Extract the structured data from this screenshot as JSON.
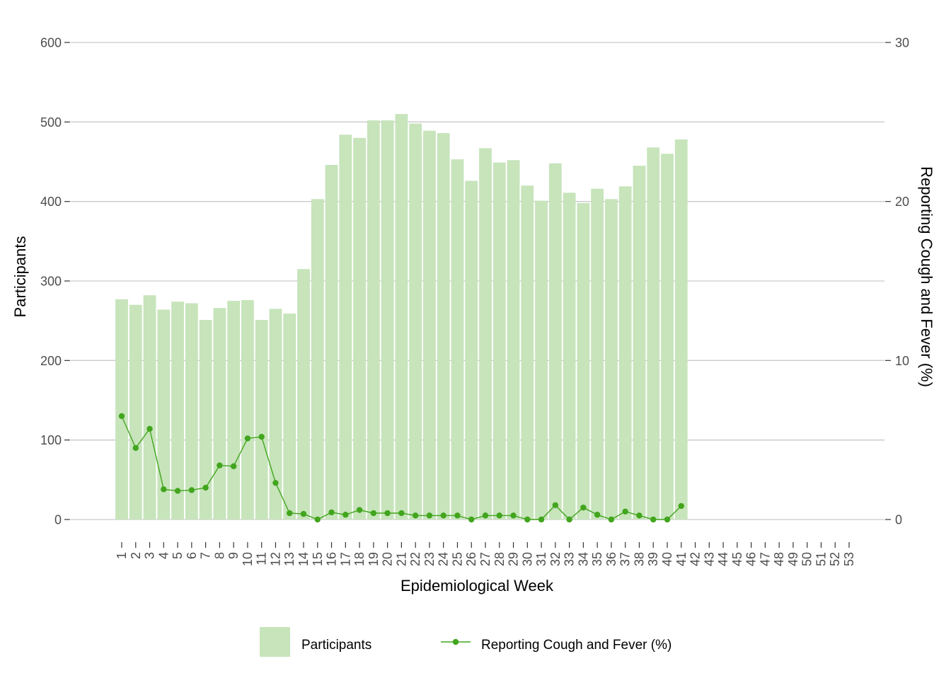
{
  "chart_data": {
    "type": "bar",
    "title": "",
    "xlabel": "Epidemiological Week",
    "ylabel": "Participants",
    "y2label": "Reporting Cough and Fever (%)",
    "ylim": [
      0,
      600
    ],
    "y2lim": [
      0,
      30
    ],
    "y_ticks": [
      "0",
      "100",
      "200",
      "300",
      "400",
      "500",
      "600"
    ],
    "y2_ticks": [
      "0",
      "10",
      "20",
      "30"
    ],
    "grid": "horizontal",
    "legend_position": "bottom",
    "categories": [
      "1",
      "2",
      "3",
      "4",
      "5",
      "6",
      "7",
      "8",
      "9",
      "10",
      "11",
      "12",
      "13",
      "14",
      "15",
      "16",
      "17",
      "18",
      "19",
      "20",
      "21",
      "22",
      "23",
      "24",
      "25",
      "26",
      "27",
      "28",
      "29",
      "30",
      "31",
      "32",
      "33",
      "34",
      "35",
      "36",
      "37",
      "38",
      "39",
      "40",
      "41",
      "42",
      "43",
      "44",
      "45",
      "46",
      "47",
      "48",
      "49",
      "50",
      "51",
      "52",
      "53"
    ],
    "visible_tick_labels": [
      "1",
      "2",
      "3",
      "4",
      "5",
      "6",
      "7",
      "8",
      "9",
      "10",
      "11",
      "12",
      "13",
      "14",
      "15",
      "16",
      "17",
      "18",
      "19",
      "20",
      "21",
      "22",
      "23",
      "24",
      "25",
      "26",
      "27",
      "28",
      "29",
      "30",
      "31",
      "32",
      "33",
      "34",
      "35",
      "36",
      "37",
      "38",
      "39",
      "40",
      "41",
      "42",
      "43",
      "44",
      "45",
      "46",
      "47",
      "48",
      "49",
      "50",
      "51",
      "52",
      "53"
    ],
    "series": [
      {
        "name": "Participants",
        "kind": "bar",
        "axis": "left",
        "color": "#c7e4bb",
        "values": [
          277,
          270,
          282,
          264,
          274,
          272,
          251,
          266,
          275,
          276,
          251,
          265,
          259,
          315,
          403,
          446,
          484,
          480,
          502,
          502,
          510,
          498,
          489,
          486,
          453,
          426,
          467,
          449,
          452,
          420,
          401,
          448,
          411,
          398,
          416,
          403,
          419,
          445,
          468,
          460,
          478,
          null,
          null,
          null,
          null,
          null,
          null,
          null,
          null,
          null,
          null,
          null,
          null
        ]
      },
      {
        "name": "Reporting Cough and Fever (%)",
        "kind": "line",
        "axis": "right",
        "color": "#41a51d",
        "values": [
          6.5,
          4.5,
          5.7,
          1.9,
          1.8,
          1.85,
          2.0,
          3.4,
          3.35,
          5.1,
          5.2,
          2.3,
          0.4,
          0.35,
          0.0,
          0.45,
          0.3,
          0.6,
          0.4,
          0.4,
          0.4,
          0.25,
          0.25,
          0.25,
          0.25,
          0.0,
          0.25,
          0.25,
          0.25,
          0.0,
          0.0,
          0.9,
          0.0,
          0.75,
          0.3,
          0.0,
          0.5,
          0.25,
          0.0,
          0.0,
          0.85,
          null,
          null,
          null,
          null,
          null,
          null,
          null,
          null,
          null,
          null,
          null,
          null
        ]
      }
    ]
  },
  "legend": {
    "bar_label": "Participants",
    "line_label": "Reporting Cough and Fever (%)"
  }
}
